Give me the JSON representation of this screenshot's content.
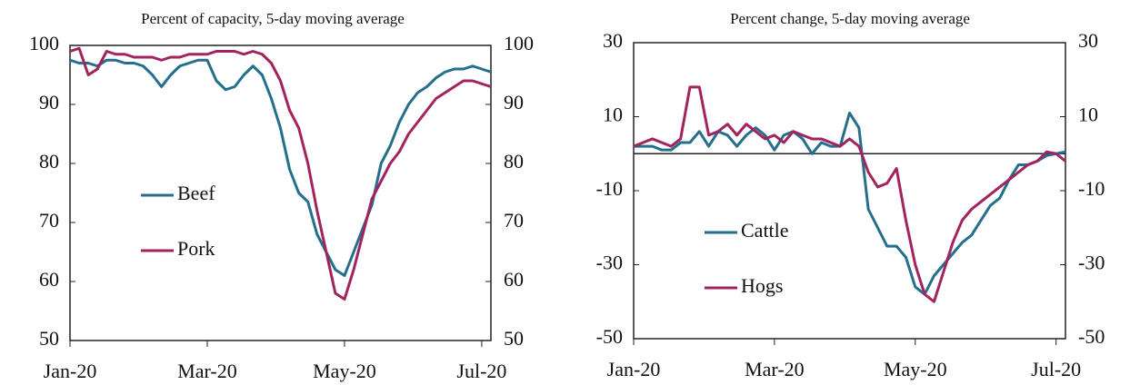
{
  "chart_data": [
    {
      "type": "line",
      "title": "Percent of capacity, 5-day moving average",
      "categories": [
        "Jan-20",
        null,
        null,
        null,
        null,
        null,
        null,
        null,
        null,
        null,
        null,
        null,
        null,
        null,
        null,
        "Mar-20",
        null,
        null,
        null,
        null,
        null,
        null,
        null,
        null,
        null,
        null,
        null,
        null,
        null,
        null,
        "May-20",
        null,
        null,
        null,
        null,
        null,
        null,
        null,
        null,
        null,
        null,
        null,
        null,
        null,
        null,
        "Jul-20",
        null
      ],
      "series": [
        {
          "name": "Beef",
          "color": "#236f8c",
          "values": [
            97.5,
            97,
            97,
            96.5,
            97.5,
            97.5,
            97,
            97,
            96.5,
            95,
            93,
            95,
            96.5,
            97,
            97.5,
            97.5,
            94,
            92.5,
            93,
            95,
            96.5,
            95,
            91,
            86,
            79,
            75,
            73.5,
            68,
            65,
            62,
            61,
            65,
            69,
            73,
            80,
            83,
            87,
            90,
            92,
            93,
            94.5,
            95.5,
            96,
            96,
            96.5,
            96,
            95.5
          ]
        },
        {
          "name": "Pork",
          "color": "#a3235e",
          "values": [
            99,
            99.5,
            95,
            96,
            99,
            98.5,
            98.5,
            98,
            98,
            98,
            97.5,
            98,
            98,
            98.5,
            98.5,
            98.5,
            99,
            99,
            99,
            98.5,
            99,
            98.5,
            97,
            94,
            89,
            86,
            80,
            72,
            65,
            58,
            57,
            62,
            68,
            74,
            77,
            80,
            82,
            85,
            87,
            89,
            91,
            92,
            93,
            94,
            94,
            93.5,
            93
          ]
        }
      ],
      "ylim": [
        50,
        100
      ],
      "yticks": [
        50,
        60,
        70,
        80,
        90,
        100
      ],
      "y2lim": [
        50,
        100
      ],
      "y2ticks": [
        50,
        60,
        70,
        80,
        90,
        100
      ]
    },
    {
      "type": "line",
      "title": "Percent change, 5-day moving average",
      "categories": [
        "Jan-20",
        null,
        null,
        null,
        null,
        null,
        null,
        null,
        null,
        null,
        null,
        null,
        null,
        null,
        null,
        "Mar-20",
        null,
        null,
        null,
        null,
        null,
        null,
        null,
        null,
        null,
        null,
        null,
        null,
        null,
        null,
        "May-20",
        null,
        null,
        null,
        null,
        null,
        null,
        null,
        null,
        null,
        null,
        null,
        null,
        null,
        null,
        "Jul-20",
        null
      ],
      "series": [
        {
          "name": "Cattle",
          "color": "#236f8c",
          "values": [
            2,
            2,
            2,
            1,
            1,
            3,
            3,
            6,
            2,
            6,
            5,
            2,
            5,
            7,
            5,
            1,
            5,
            6,
            4,
            0,
            3,
            2,
            2,
            11,
            7,
            -15,
            -20,
            -25,
            -25,
            -28,
            -36,
            -38,
            -33,
            -30,
            -27,
            -24,
            -22,
            -18,
            -14,
            -12,
            -7,
            -3,
            -3,
            -2,
            -0.5,
            0,
            0.5
          ]
        },
        {
          "name": "Hogs",
          "color": "#a3235e",
          "values": [
            2,
            3,
            4,
            3,
            2,
            4,
            18,
            18,
            5,
            6,
            8,
            5,
            8,
            6,
            4,
            5,
            3,
            6,
            5,
            4,
            4,
            3,
            2,
            4,
            2,
            -5,
            -9,
            -8,
            -4,
            -18,
            -30,
            -38,
            -40,
            -32,
            -24,
            -18,
            -15,
            -13,
            -11,
            -9,
            -7,
            -5,
            -3,
            -2,
            0.5,
            0,
            -2
          ]
        }
      ],
      "ylim": [
        -50,
        30
      ],
      "yticks": [
        -50,
        -30,
        -10,
        10,
        30
      ],
      "y2lim": [
        -50,
        30
      ],
      "y2ticks": [
        -50,
        -30,
        -10,
        10,
        30
      ],
      "zero_line": true
    }
  ]
}
